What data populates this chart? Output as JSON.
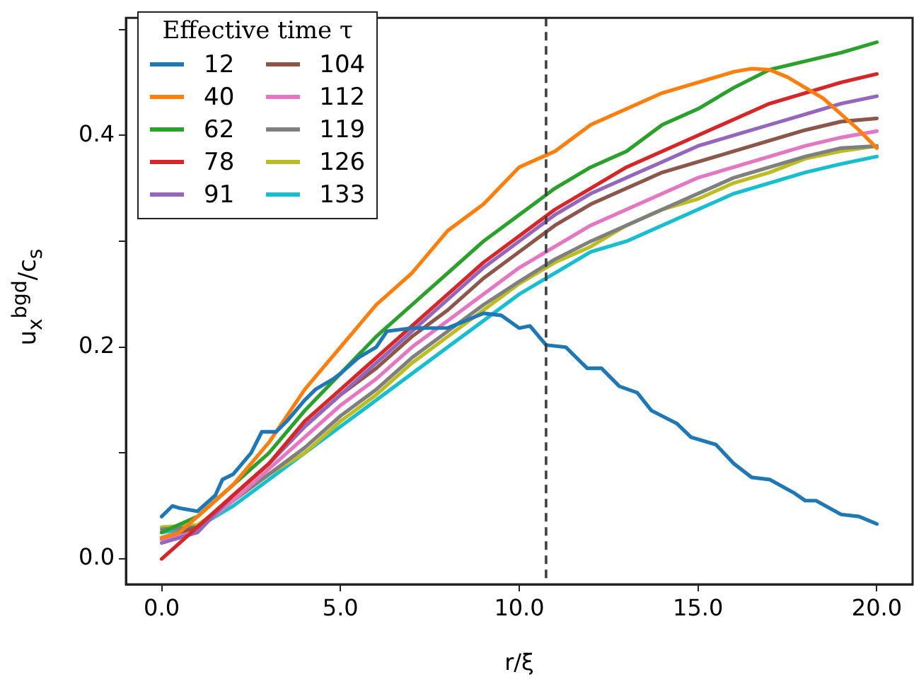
{
  "chart_data": {
    "type": "line",
    "xlabel": "r/ξ",
    "ylabel": "u$_{x}$$^{bgd}$/c$_{s}$",
    "legend_title": "Effective time τ",
    "legend": "top left",
    "grid": false,
    "line_style": "solid",
    "marker": "none",
    "x": [
      0,
      1,
      2,
      3,
      4,
      5,
      6,
      7,
      8,
      9,
      10,
      11,
      12,
      13,
      14,
      15,
      16,
      17,
      18,
      19,
      20
    ],
    "xlim": [
      -1,
      21
    ],
    "xticks": [
      {
        "value": 0,
        "label": "0.0"
      },
      {
        "value": 5,
        "label": "5.0"
      },
      {
        "value": 10,
        "label": "10.0"
      },
      {
        "value": 15,
        "label": "15.0"
      },
      {
        "value": 20,
        "label": "20.0"
      }
    ],
    "ylim": [
      -0.024,
      0.511
    ],
    "yticks": [
      {
        "value": 0,
        "label": "0.0"
      },
      {
        "value": 0.1,
        "label": null
      },
      {
        "value": 0.2,
        "label": "0.2"
      },
      {
        "value": 0.3,
        "label": null
      },
      {
        "value": 0.4,
        "label": "0.4"
      },
      {
        "value": 0.5,
        "label": null
      }
    ],
    "ref_lines": [
      {
        "axis": "x",
        "value": 10.75,
        "color": "#404040",
        "line_style": "dashed"
      }
    ],
    "series": [
      {
        "name": "12",
        "color": "#1f77b4",
        "x": [
          0,
          0.3,
          0.5,
          1,
          1.5,
          1.7,
          2,
          2.5,
          2.8,
          3.2,
          3.5,
          4,
          4.3,
          4.8,
          5,
          5.5,
          6,
          6.3,
          7,
          8,
          8.5,
          9,
          9.5,
          10,
          10.3,
          10.75,
          11.3,
          11.9,
          12.3,
          12.8,
          13.3,
          13.7,
          14.4,
          14.8,
          15.5,
          16,
          16.5,
          17,
          17.7,
          18,
          18.3,
          19,
          19.5,
          20
        ],
        "values": [
          0.04,
          0.05,
          0.048,
          0.045,
          0.06,
          0.075,
          0.08,
          0.1,
          0.12,
          0.12,
          0.13,
          0.15,
          0.16,
          0.17,
          0.175,
          0.19,
          0.2,
          0.215,
          0.218,
          0.218,
          0.225,
          0.232,
          0.23,
          0.218,
          0.22,
          0.202,
          0.2,
          0.18,
          0.18,
          0.163,
          0.157,
          0.14,
          0.128,
          0.115,
          0.108,
          0.09,
          0.077,
          0.075,
          0.062,
          0.055,
          0.055,
          0.042,
          0.04,
          0.033
        ]
      },
      {
        "name": "40",
        "color": "#ff7f0e",
        "x": [
          0,
          0.5,
          1,
          2,
          3,
          4,
          5,
          6,
          7,
          8,
          9,
          10,
          11,
          12,
          13,
          14,
          15,
          16,
          16.5,
          17,
          17.5,
          18,
          18.5,
          19,
          19.5,
          20
        ],
        "values": [
          0.02,
          0.025,
          0.04,
          0.07,
          0.11,
          0.16,
          0.2,
          0.24,
          0.27,
          0.31,
          0.335,
          0.37,
          0.385,
          0.41,
          0.425,
          0.44,
          0.45,
          0.46,
          0.463,
          0.462,
          0.455,
          0.445,
          0.435,
          0.42,
          0.405,
          0.388
        ]
      },
      {
        "name": "62",
        "color": "#2ca02c",
        "values": [
          0.025,
          0.04,
          0.07,
          0.1,
          0.14,
          0.175,
          0.21,
          0.24,
          0.27,
          0.3,
          0.325,
          0.35,
          0.37,
          0.385,
          0.41,
          0.425,
          0.445,
          0.462,
          0.47,
          0.478,
          0.488
        ]
      },
      {
        "name": "78",
        "color": "#d62728",
        "values": [
          0.0,
          0.03,
          0.06,
          0.09,
          0.13,
          0.16,
          0.19,
          0.22,
          0.25,
          0.28,
          0.305,
          0.33,
          0.35,
          0.37,
          0.385,
          0.4,
          0.415,
          0.43,
          0.44,
          0.45,
          0.458
        ]
      },
      {
        "name": "91",
        "color": "#9467bd",
        "values": [
          0.015,
          0.025,
          0.06,
          0.09,
          0.125,
          0.155,
          0.185,
          0.215,
          0.245,
          0.275,
          0.3,
          0.325,
          0.345,
          0.36,
          0.375,
          0.39,
          0.4,
          0.41,
          0.42,
          0.43,
          0.437
        ]
      },
      {
        "name": "104",
        "color": "#8c564b",
        "values": [
          0.02,
          0.03,
          0.06,
          0.09,
          0.125,
          0.155,
          0.18,
          0.21,
          0.235,
          0.265,
          0.29,
          0.315,
          0.335,
          0.35,
          0.365,
          0.375,
          0.385,
          0.395,
          0.405,
          0.413,
          0.416
        ]
      },
      {
        "name": "112",
        "color": "#e377c2",
        "values": [
          0.018,
          0.028,
          0.055,
          0.085,
          0.115,
          0.145,
          0.17,
          0.2,
          0.225,
          0.25,
          0.275,
          0.295,
          0.315,
          0.33,
          0.345,
          0.36,
          0.37,
          0.38,
          0.39,
          0.398,
          0.404
        ]
      },
      {
        "name": "119",
        "color": "#7f7f7f",
        "values": [
          0.028,
          0.03,
          0.055,
          0.08,
          0.105,
          0.135,
          0.16,
          0.19,
          0.215,
          0.24,
          0.262,
          0.283,
          0.3,
          0.315,
          0.33,
          0.345,
          0.36,
          0.37,
          0.38,
          0.388,
          0.39
        ]
      },
      {
        "name": "126",
        "color": "#bcbd22",
        "values": [
          0.03,
          0.032,
          0.055,
          0.08,
          0.1,
          0.13,
          0.155,
          0.185,
          0.21,
          0.235,
          0.26,
          0.28,
          0.295,
          0.315,
          0.33,
          0.34,
          0.355,
          0.365,
          0.378,
          0.385,
          0.39
        ]
      },
      {
        "name": "133",
        "color": "#17becf",
        "values": [
          0.025,
          0.03,
          0.05,
          0.075,
          0.1,
          0.125,
          0.15,
          0.175,
          0.2,
          0.225,
          0.25,
          0.27,
          0.29,
          0.3,
          0.315,
          0.33,
          0.345,
          0.355,
          0.365,
          0.373,
          0.38
        ]
      }
    ]
  }
}
